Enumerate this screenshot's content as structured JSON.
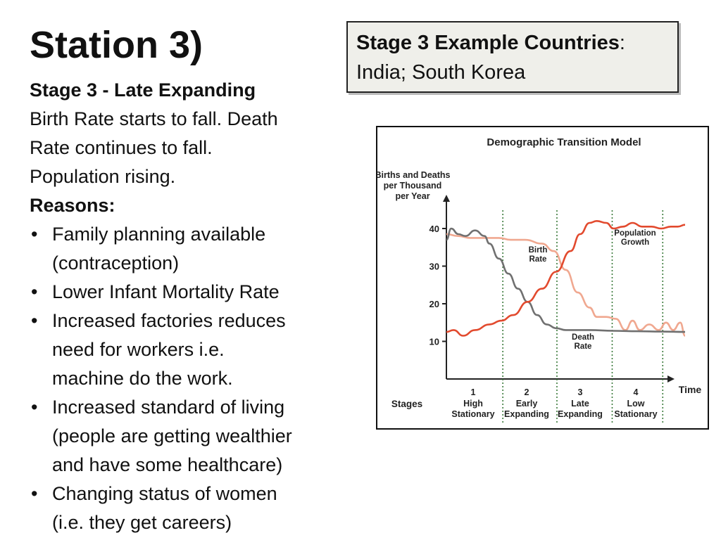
{
  "slide": {
    "title": "Station 3)",
    "stage_heading": "Stage 3 - Late Expanding",
    "description_lines": [
      "Birth Rate starts to fall. Death",
      "Rate continues to fall.",
      "Population rising."
    ],
    "reasons_heading": "Reasons:",
    "reasons": [
      [
        "Family planning available",
        "(contraception)"
      ],
      [
        "Lower Infant Mortality Rate"
      ],
      [
        "Increased factories reduces",
        "need for workers i.e.",
        "machine do the work."
      ],
      [
        "Increased standard of living",
        "(people are getting wealthier",
        "and have some healthcare)"
      ],
      [
        "Changing status of women",
        "(i.e. they get careers)"
      ]
    ]
  },
  "example_box": {
    "heading": "Stage 3 Example Countries",
    "colon": ":",
    "countries": "India; South Korea"
  },
  "chart_data": {
    "type": "line",
    "title": "Demographic Transition Model",
    "ylabel": [
      "Births and Deaths",
      "per Thousand",
      "per Year"
    ],
    "xlabel": "Time",
    "ylim": [
      0,
      45
    ],
    "yticks": [
      10,
      20,
      30,
      40
    ],
    "stages_label": "Stages",
    "stages": [
      {
        "number": "1",
        "lines": [
          "High",
          "Stationary"
        ]
      },
      {
        "number": "2",
        "lines": [
          "Early",
          "Expanding"
        ]
      },
      {
        "number": "3",
        "lines": [
          "Late",
          "Expanding"
        ]
      },
      {
        "number": "4",
        "lines": [
          "Low",
          "Stationary"
        ]
      }
    ],
    "series": [
      {
        "name": "Birth Rate",
        "label_lines": [
          "Birth",
          "Rate"
        ],
        "color": "#f0a890",
        "x": [
          0,
          5,
          10,
          15,
          18,
          22,
          27,
          33,
          40,
          45,
          50,
          55,
          60,
          63,
          67,
          71,
          75,
          78,
          81,
          85,
          89,
          92,
          95,
          98,
          100
        ],
        "values": [
          38.5,
          38,
          37.5,
          37.5,
          37.5,
          37.5,
          37,
          37,
          36,
          34,
          29,
          23,
          19,
          16.5,
          16.5,
          16,
          13,
          15.5,
          13,
          14.5,
          13,
          15,
          13,
          15,
          11.5
        ]
      },
      {
        "name": "Death Rate",
        "label_lines": [
          "Death",
          "Rate"
        ],
        "color": "#707070",
        "x": [
          0,
          2,
          5,
          8,
          12,
          16,
          18,
          22,
          26,
          30,
          34,
          38,
          42,
          46,
          50,
          55,
          60,
          70,
          80,
          90,
          100
        ],
        "values": [
          37,
          40,
          38.5,
          38,
          39.5,
          38,
          36,
          32,
          28,
          24,
          20.5,
          17,
          14.5,
          13.5,
          13,
          13,
          13,
          12.8,
          12.7,
          12.6,
          12.5
        ]
      },
      {
        "name": "Population Growth",
        "label_lines": [
          "Population",
          "Growth"
        ],
        "color": "#e24a2e",
        "x": [
          0,
          3,
          7,
          12,
          18,
          23,
          28,
          34,
          40,
          46,
          52,
          56,
          60,
          63,
          67,
          70,
          74,
          78,
          82,
          86,
          90,
          94,
          97,
          100
        ],
        "values": [
          12.5,
          13,
          11.5,
          13,
          14.5,
          15.5,
          17,
          20.5,
          24,
          28.5,
          34,
          38.5,
          41.5,
          42,
          41.5,
          40,
          40.5,
          41.5,
          40.5,
          40.5,
          40,
          40.5,
          40.5,
          41
        ]
      }
    ]
  }
}
